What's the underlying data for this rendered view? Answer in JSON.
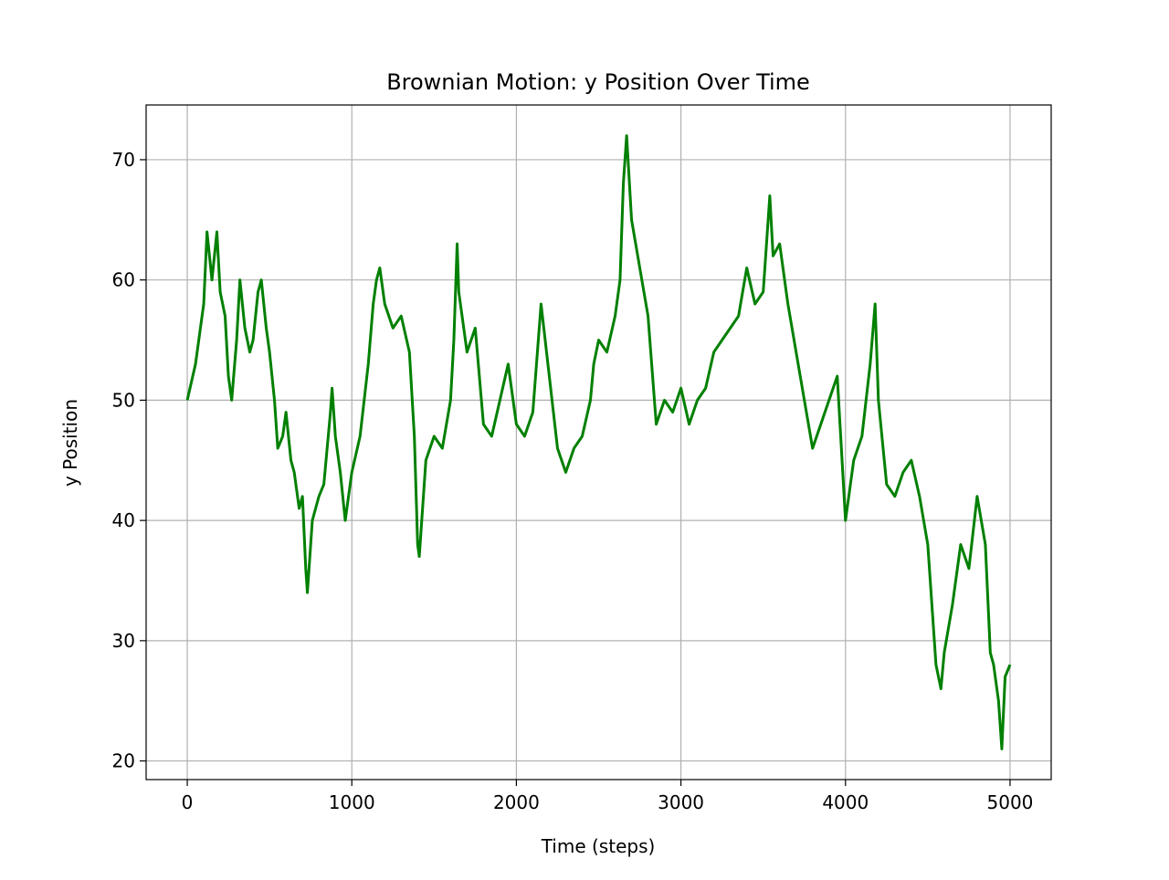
{
  "chart_data": {
    "type": "line",
    "title": "Brownian Motion: y Position Over Time",
    "x_label": "Time (steps)",
    "y_label": "y Position",
    "x": [
      0,
      50,
      100,
      120,
      150,
      180,
      200,
      230,
      250,
      270,
      300,
      320,
      350,
      380,
      400,
      430,
      450,
      480,
      500,
      530,
      550,
      580,
      600,
      630,
      650,
      680,
      700,
      720,
      730,
      760,
      800,
      830,
      870,
      880,
      900,
      930,
      960,
      1000,
      1050,
      1100,
      1130,
      1150,
      1170,
      1200,
      1250,
      1300,
      1350,
      1380,
      1400,
      1410,
      1450,
      1500,
      1550,
      1600,
      1620,
      1640,
      1650,
      1700,
      1750,
      1800,
      1850,
      1900,
      1950,
      2000,
      2050,
      2100,
      2150,
      2200,
      2250,
      2300,
      2350,
      2400,
      2450,
      2470,
      2500,
      2550,
      2600,
      2630,
      2650,
      2670,
      2700,
      2750,
      2800,
      2850,
      2900,
      2950,
      3000,
      3050,
      3100,
      3150,
      3200,
      3250,
      3300,
      3350,
      3400,
      3450,
      3500,
      3540,
      3560,
      3600,
      3650,
      3700,
      3750,
      3800,
      3850,
      3900,
      3950,
      4000,
      4050,
      4100,
      4150,
      4180,
      4200,
      4250,
      4300,
      4350,
      4400,
      4450,
      4500,
      4550,
      4580,
      4600,
      4650,
      4700,
      4750,
      4800,
      4850,
      4880,
      4900,
      4930,
      4950,
      4970,
      5000
    ],
    "series": [
      {
        "name": "y",
        "color": "#008000",
        "values": [
          50,
          53,
          58,
          64,
          60,
          64,
          59,
          57,
          52,
          50,
          55,
          60,
          56,
          54,
          55,
          59,
          60,
          56,
          54,
          50,
          46,
          47,
          49,
          45,
          44,
          41,
          42,
          36,
          34,
          40,
          42,
          43,
          49,
          51,
          47,
          44,
          40,
          44,
          47,
          53,
          58,
          60,
          61,
          58,
          56,
          57,
          54,
          47,
          38,
          37,
          45,
          47,
          46,
          50,
          55,
          63,
          59,
          54,
          56,
          48,
          47,
          50,
          53,
          48,
          47,
          49,
          58,
          52,
          46,
          44,
          46,
          47,
          50,
          53,
          55,
          54,
          57,
          60,
          68,
          72,
          65,
          61,
          57,
          48,
          50,
          49,
          51,
          48,
          50,
          51,
          54,
          55,
          56,
          57,
          61,
          58,
          59,
          67,
          62,
          63,
          58,
          54,
          50,
          46,
          48,
          50,
          52,
          40,
          45,
          47,
          53,
          58,
          50,
          43,
          42,
          44,
          45,
          42,
          38,
          28,
          26,
          29,
          33,
          38,
          36,
          42,
          38,
          29,
          28,
          25,
          21,
          27,
          28
        ]
      }
    ],
    "xlim": [
      -250,
      5250
    ],
    "ylim": [
      18.45,
      74.55
    ],
    "xticks": [
      0,
      1000,
      2000,
      3000,
      4000,
      5000
    ],
    "yticks": [
      20,
      30,
      40,
      50,
      60,
      70
    ],
    "grid": true
  }
}
